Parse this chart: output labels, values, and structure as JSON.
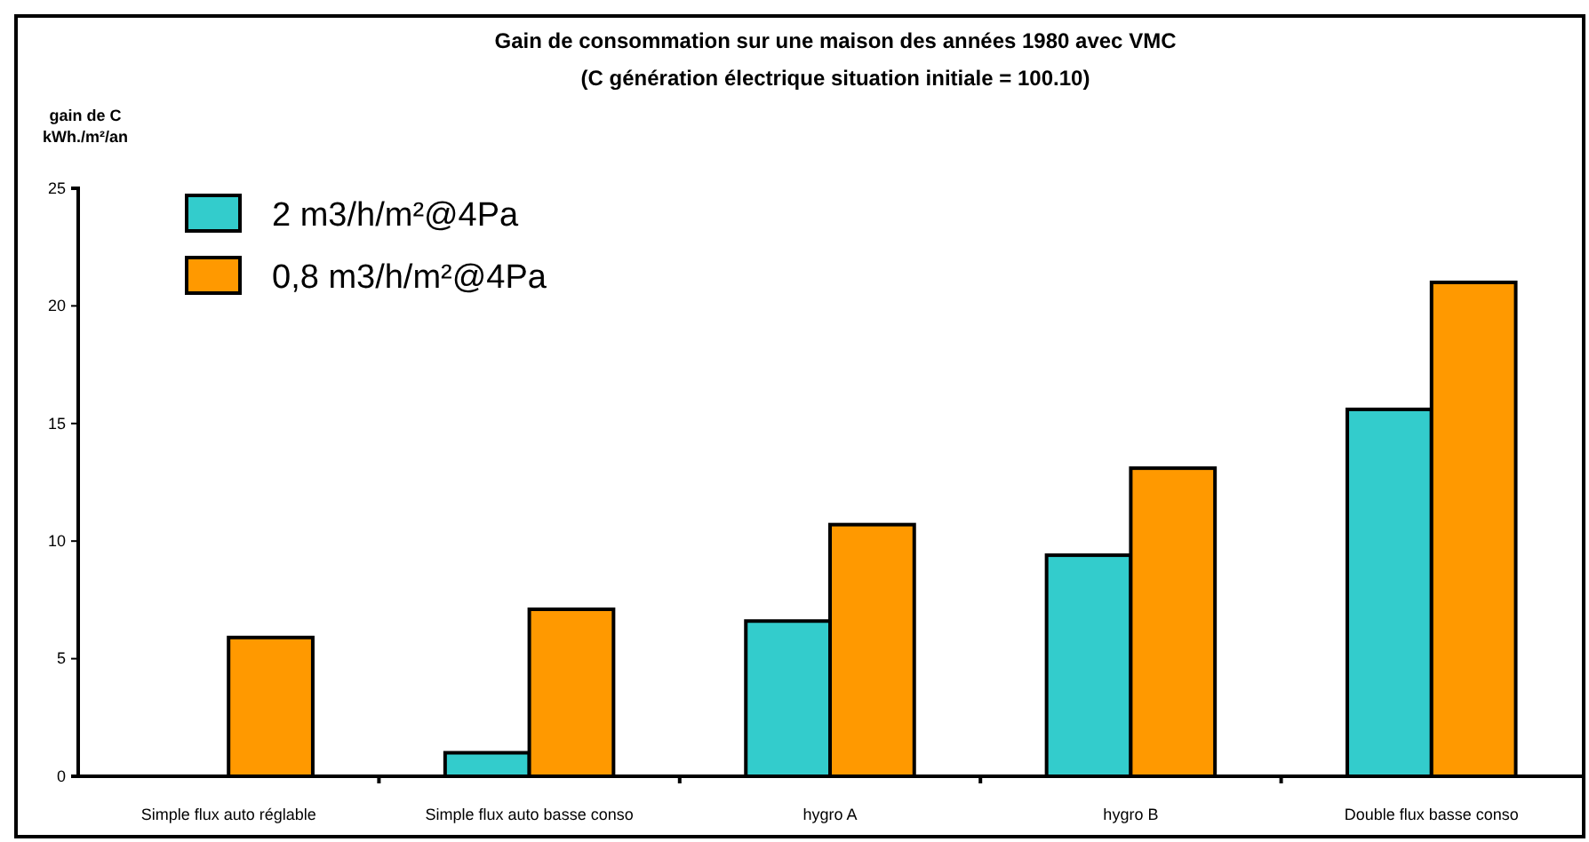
{
  "chart_data": {
    "type": "bar",
    "title": "Gain de consommation sur une maison des années 1980 avec VMC",
    "subtitle": "(C génération électrique situation initiale = 100.10)",
    "ylabel": "gain de C kWh./m²/an",
    "categories": [
      "Simple flux auto réglable",
      "Simple flux auto basse conso",
      "hygro A",
      "hygro B",
      "Double flux basse conso"
    ],
    "series": [
      {
        "name": "2 m3/h/m²@4Pa",
        "color": "#33cccc",
        "values": [
          0,
          1.0,
          6.6,
          9.4,
          15.6
        ]
      },
      {
        "name": "0,8 m3/h/m²@4Pa",
        "color": "#ff9900",
        "values": [
          5.9,
          7.1,
          10.7,
          13.1,
          21.0
        ]
      }
    ],
    "ylim": [
      0,
      25
    ],
    "yticks": [
      0,
      5,
      10,
      15,
      20,
      25
    ],
    "grid": false,
    "legend": "top left"
  }
}
